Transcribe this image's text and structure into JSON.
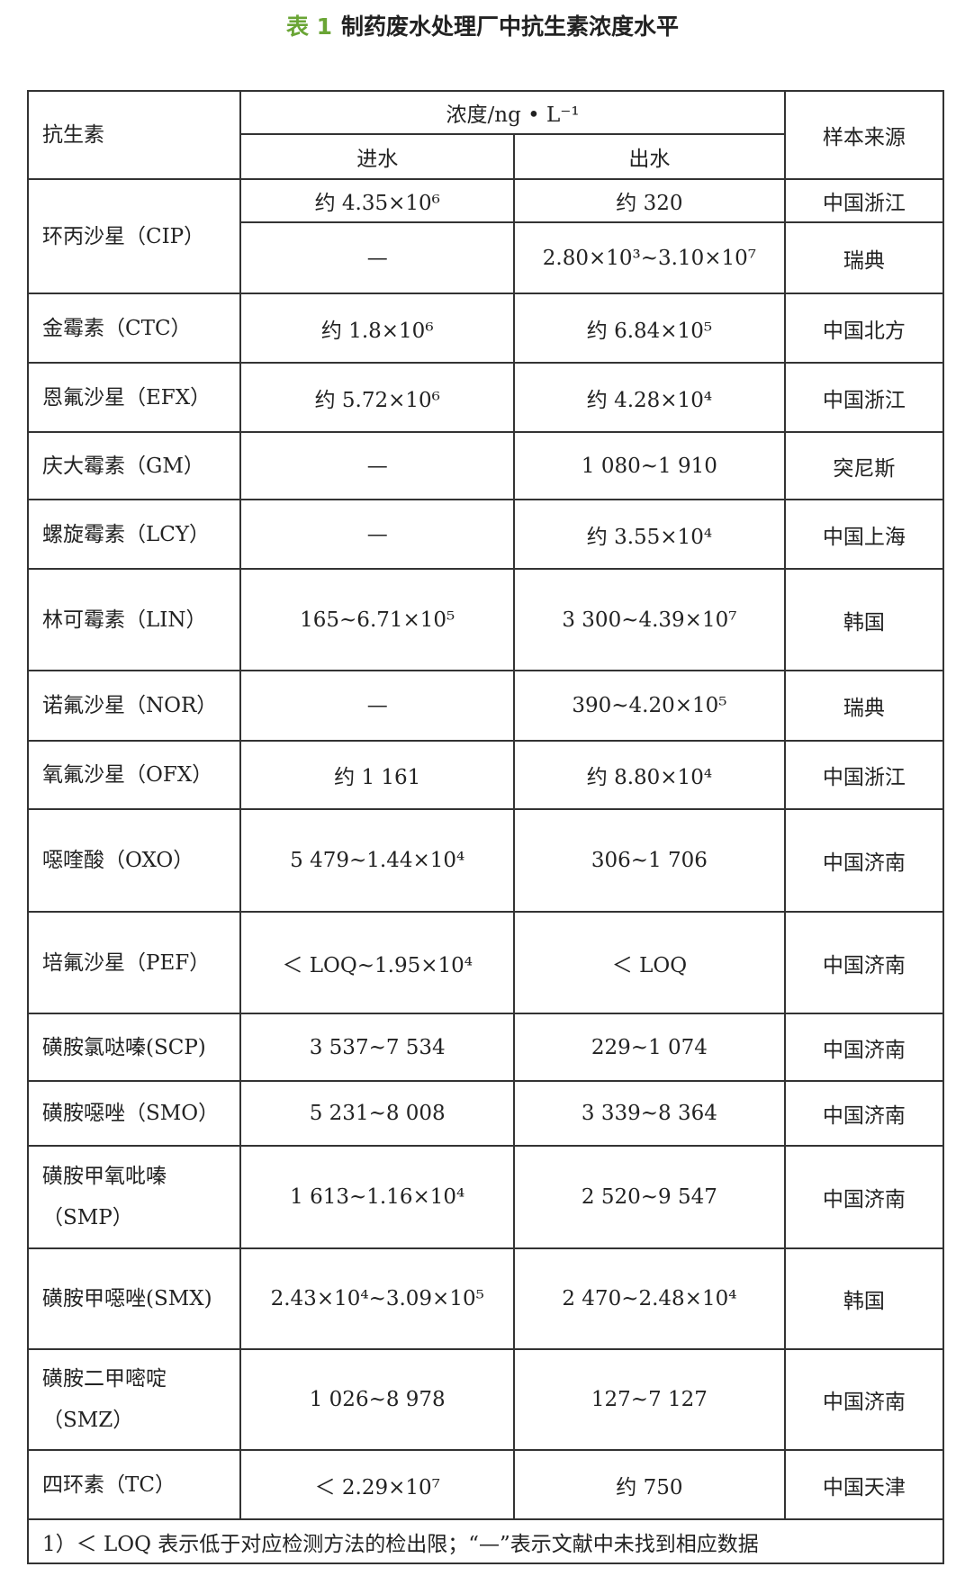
{
  "title": {
    "label": "表 1",
    "text": "制药废水处理厂中抗生素浓度水平"
  },
  "header": {
    "antibiotic": "抗生素",
    "concentration": "浓度/ng • L⁻¹",
    "influent": "进水",
    "effluent": "出水",
    "source": "样本来源"
  },
  "rows": [
    {
      "name": "环丙沙星（CIP）",
      "influent": "约 4.35×10⁶",
      "effluent": "约 320",
      "source": "中国浙江"
    },
    {
      "name": "",
      "influent": "—",
      "effluent": "2.80×10³~3.10×10⁷",
      "source": "瑞典"
    },
    {
      "name": "金霉素（CTC）",
      "influent": "约 1.8×10⁶",
      "effluent": "约 6.84×10⁵",
      "source": "中国北方"
    },
    {
      "name": "恩氟沙星（EFX）",
      "influent": "约 5.72×10⁶",
      "effluent": "约 4.28×10⁴",
      "source": "中国浙江"
    },
    {
      "name": "庆大霉素（GM）",
      "influent": "—",
      "effluent": "1 080~1 910",
      "source": "突尼斯"
    },
    {
      "name": "螺旋霉素（LCY）",
      "influent": "—",
      "effluent": "约 3.55×10⁴",
      "source": "中国上海"
    },
    {
      "name": "林可霉素（LIN）",
      "influent": "165~6.71×10⁵",
      "effluent": "3 300~4.39×10⁷",
      "source": "韩国"
    },
    {
      "name": "诺氟沙星（NOR）",
      "influent": "—",
      "effluent": "390~4.20×10⁵",
      "source": "瑞典"
    },
    {
      "name": "氧氟沙星（OFX）",
      "influent": "约 1 161",
      "effluent": "约 8.80×10⁴",
      "source": "中国浙江"
    },
    {
      "name": "噁喹酸（OXO）",
      "influent": "5 479~1.44×10⁴",
      "effluent": "306~1 706",
      "source": "中国济南"
    },
    {
      "name": "培氟沙星（PEF）",
      "influent": "＜ LOQ~1.95×10⁴",
      "effluent": "＜ LOQ",
      "source": "中国济南"
    },
    {
      "name": "磺胺氯哒嗪(SCP)",
      "influent": "3 537~7 534",
      "effluent": "229~1 074",
      "source": "中国济南"
    },
    {
      "name": "磺胺噁唑（SMO）",
      "influent": "5 231~8 008",
      "effluent": "3 339~8 364",
      "source": "中国济南"
    },
    {
      "name": "磺胺甲氧吡嗪（SMP）",
      "influent": "1 613~1.16×10⁴",
      "effluent": "2 520~9 547",
      "source": "中国济南"
    },
    {
      "name": "磺胺甲噁唑(SMX)",
      "influent": "2.43×10⁴~3.09×10⁵",
      "effluent": "2 470~2.48×10⁴",
      "source": "韩国"
    },
    {
      "name": "磺胺二甲嘧啶（SMZ）",
      "influent": "1 026~8 978",
      "effluent": "127~7 127",
      "source": "中国济南"
    },
    {
      "name": "四环素（TC）",
      "influent": "＜ 2.29×10⁷",
      "effluent": "约 750",
      "source": "中国天津"
    }
  ],
  "footnote": "1）＜ LOQ 表示低于对应检测方法的检出限；“—”表示文献中未找到相应数据"
}
